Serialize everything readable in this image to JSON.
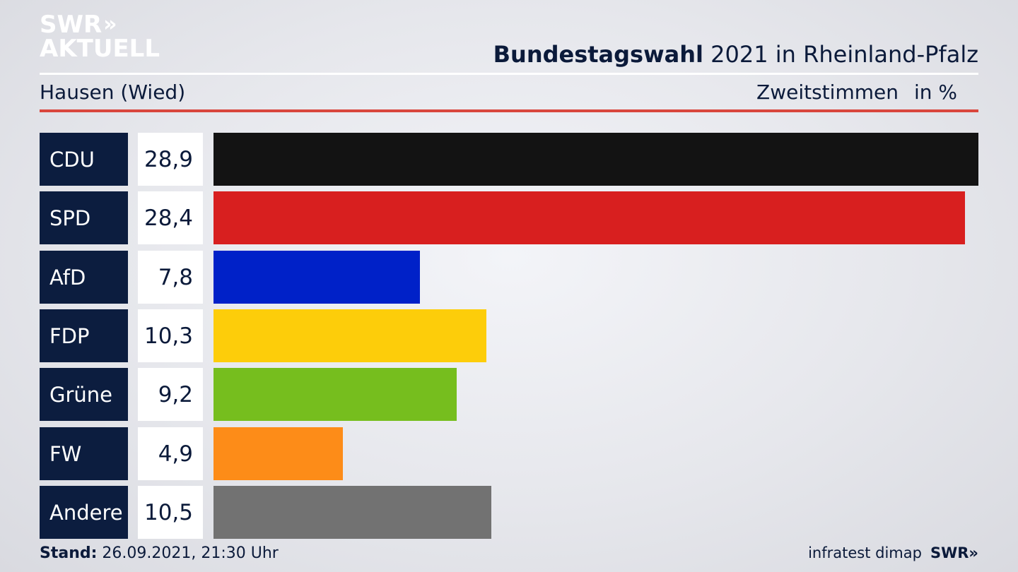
{
  "logo": {
    "line1": "SWR",
    "chevrons": "»",
    "line2": "AKTUELL"
  },
  "header": {
    "title_bold": "Bundestagswahl",
    "title_rest": " 2021 in Rheinland-Pfalz",
    "location": "Hausen (Wied)",
    "vote_type": "Zweitstimmen",
    "unit": "in %"
  },
  "chart_data": {
    "type": "bar",
    "orientation": "horizontal",
    "categories": [
      "CDU",
      "SPD",
      "AfD",
      "FDP",
      "Grüne",
      "FW",
      "Andere"
    ],
    "values": [
      28.9,
      28.4,
      7.8,
      10.3,
      9.2,
      4.9,
      10.5
    ],
    "value_labels": [
      "28,9",
      "28,4",
      "7,8",
      "10,3",
      "9,2",
      "4,9",
      "10,5"
    ],
    "colors": [
      "#131313",
      "#d81f1f",
      "#0021c8",
      "#fdcd0a",
      "#76be1e",
      "#fd8c18",
      "#727272"
    ],
    "xlim": [
      0,
      28.9
    ],
    "grid": false,
    "legend": "none"
  },
  "footer": {
    "stand_label": "Stand:",
    "stand_value": " 26.09.2021, 21:30 Uhr",
    "source": "infratest dimap",
    "brand": "SWR»"
  }
}
